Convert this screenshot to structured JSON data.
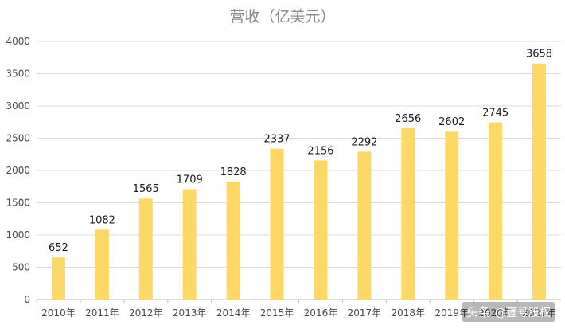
{
  "chart_data": {
    "type": "bar",
    "title": "营收（亿美元）",
    "categories": [
      "2010年",
      "2011年",
      "2012年",
      "2013年",
      "2014年",
      "2015年",
      "2016年",
      "2017年",
      "2018年",
      "2019年",
      "2020年",
      "2021年"
    ],
    "values": [
      652,
      1082,
      1565,
      1709,
      1828,
      2337,
      2156,
      2292,
      2656,
      2602,
      2745,
      3658
    ],
    "ylim": [
      0,
      4000
    ],
    "yticks": [
      0,
      500,
      1000,
      1500,
      2000,
      2500,
      3000,
      3500,
      4000
    ],
    "xlabel": "",
    "ylabel": "",
    "bar_color": "#FDD865",
    "grid": true,
    "legend": "none"
  },
  "watermark": {
    "prefix": "头条",
    "handle": "@壹号股权"
  }
}
